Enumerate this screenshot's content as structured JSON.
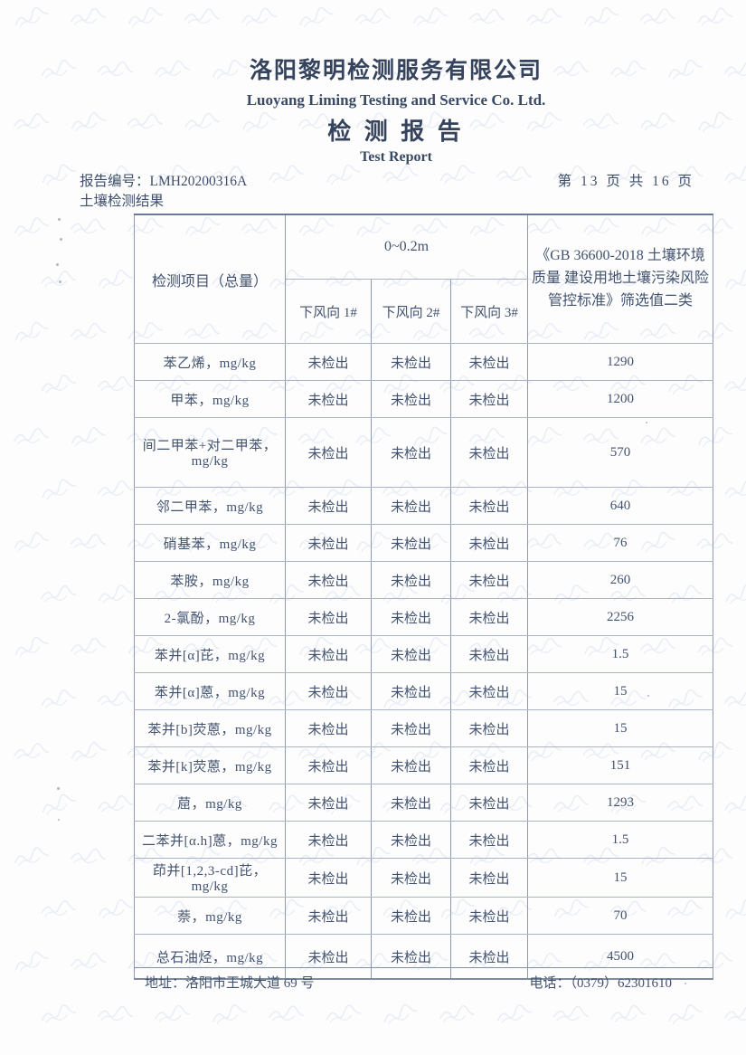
{
  "header": {
    "company_cn": "洛阳黎明检测服务有限公司",
    "company_en": "Luoyang Liming Testing and Service Co. Ltd.",
    "title_cn": "检 测 报 告",
    "title_en": "Test Report",
    "report_no_label": "报告编号：",
    "report_no": "LMH20200316A",
    "page_info": "第 13 页 共 16 页",
    "section_title": "土壤检测结果"
  },
  "table": {
    "item_header": "检测项目（总量）",
    "depth_header": "0~0.2m",
    "sample_headers": [
      "下风向 1#",
      "下风向 2#",
      "下风向 3#"
    ],
    "standard_header": "《GB 36600-2018 土壤环境质量 建设用地土壤污染风险管控标准》筛选值二类",
    "rows": [
      {
        "item": "苯乙烯，mg/kg",
        "values": [
          "未检出",
          "未检出",
          "未检出"
        ],
        "standard": "1290"
      },
      {
        "item": "甲苯，mg/kg",
        "values": [
          "未检出",
          "未检出",
          "未检出"
        ],
        "standard": "1200"
      },
      {
        "item": "间二甲苯+对二甲苯，mg/kg",
        "values": [
          "未检出",
          "未检出",
          "未检出"
        ],
        "standard": "570"
      },
      {
        "item": "邻二甲苯，mg/kg",
        "values": [
          "未检出",
          "未检出",
          "未检出"
        ],
        "standard": "640"
      },
      {
        "item": "硝基苯，mg/kg",
        "values": [
          "未检出",
          "未检出",
          "未检出"
        ],
        "standard": "76"
      },
      {
        "item": "苯胺，mg/kg",
        "values": [
          "未检出",
          "未检出",
          "未检出"
        ],
        "standard": "260"
      },
      {
        "item": "2-氯酚，mg/kg",
        "values": [
          "未检出",
          "未检出",
          "未检出"
        ],
        "standard": "2256"
      },
      {
        "item": "苯并[α]芘，mg/kg",
        "values": [
          "未检出",
          "未检出",
          "未检出"
        ],
        "standard": "1.5"
      },
      {
        "item": "苯并[α]蒽，mg/kg",
        "values": [
          "未检出",
          "未检出",
          "未检出"
        ],
        "standard": "15"
      },
      {
        "item": "苯并[b]荧蒽，mg/kg",
        "values": [
          "未检出",
          "未检出",
          "未检出"
        ],
        "standard": "15"
      },
      {
        "item": "苯并[k]荧蒽，mg/kg",
        "values": [
          "未检出",
          "未检出",
          "未检出"
        ],
        "standard": "151"
      },
      {
        "item": "䓛，mg/kg",
        "values": [
          "未检出",
          "未检出",
          "未检出"
        ],
        "standard": "1293"
      },
      {
        "item": "二苯并[α.h]蒽，mg/kg",
        "values": [
          "未检出",
          "未检出",
          "未检出"
        ],
        "standard": "1.5"
      },
      {
        "item": "茚并[1,2,3-cd]芘，mg/kg",
        "values": [
          "未检出",
          "未检出",
          "未检出"
        ],
        "standard": "15"
      },
      {
        "item": "萘，mg/kg",
        "values": [
          "未检出",
          "未检出",
          "未检出"
        ],
        "standard": "70"
      },
      {
        "item": "总石油烃，mg/kg",
        "values": [
          "未检出",
          "未检出",
          "未检出"
        ],
        "standard": "4500"
      }
    ]
  },
  "footer": {
    "address_label": "地址：",
    "address": "洛阳市王城大道 69 号",
    "phone_label": "电话：",
    "phone": "（0379）62301610"
  },
  "colors": {
    "ink": "#3e4e6a",
    "table_border": "#8e9ab0",
    "watermark": "#d6dfee"
  }
}
